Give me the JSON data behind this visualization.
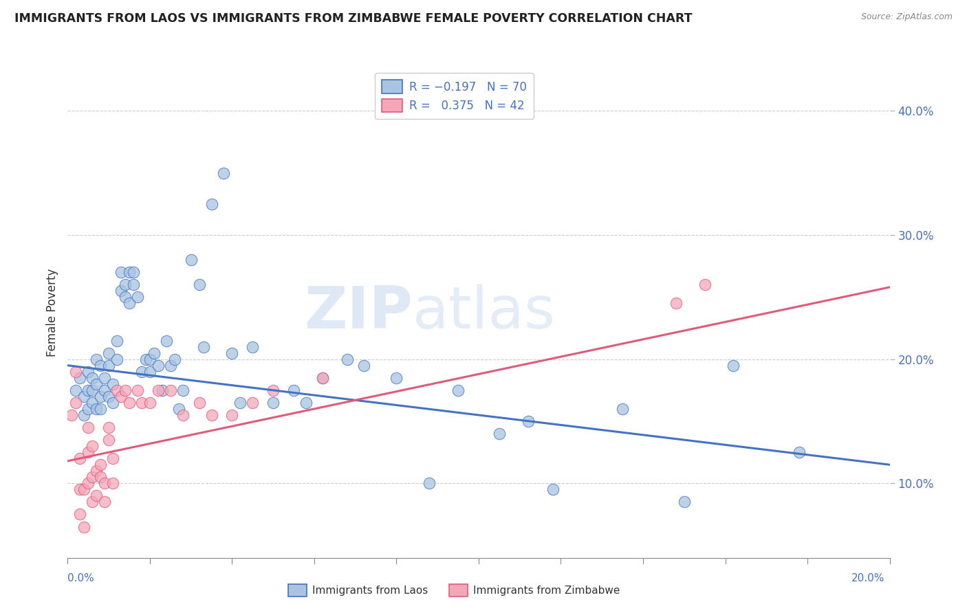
{
  "title": "IMMIGRANTS FROM LAOS VS IMMIGRANTS FROM ZIMBABWE FEMALE POVERTY CORRELATION CHART",
  "source": "Source: ZipAtlas.com",
  "ylabel": "Female Poverty",
  "yaxis_ticks": [
    0.1,
    0.2,
    0.3,
    0.4
  ],
  "yaxis_labels": [
    "10.0%",
    "20.0%",
    "30.0%",
    "40.0%"
  ],
  "xlim": [
    0.0,
    0.2
  ],
  "ylim": [
    0.04,
    0.435
  ],
  "color_laos": "#a8c4e0",
  "color_zimbabwe": "#f4a7b9",
  "color_line_laos": "#4472c4",
  "color_line_zimbabwe": "#e05a7a",
  "background_color": "#ffffff",
  "watermark_zip": "ZIP",
  "watermark_atlas": "atlas",
  "laos_x": [
    0.002,
    0.003,
    0.004,
    0.004,
    0.005,
    0.005,
    0.005,
    0.006,
    0.006,
    0.006,
    0.007,
    0.007,
    0.007,
    0.008,
    0.008,
    0.008,
    0.009,
    0.009,
    0.01,
    0.01,
    0.01,
    0.011,
    0.011,
    0.012,
    0.012,
    0.013,
    0.013,
    0.014,
    0.014,
    0.015,
    0.015,
    0.016,
    0.016,
    0.017,
    0.018,
    0.019,
    0.02,
    0.02,
    0.021,
    0.022,
    0.023,
    0.024,
    0.025,
    0.026,
    0.027,
    0.028,
    0.03,
    0.032,
    0.033,
    0.035,
    0.038,
    0.04,
    0.042,
    0.045,
    0.05,
    0.055,
    0.058,
    0.062,
    0.068,
    0.072,
    0.08,
    0.088,
    0.095,
    0.105,
    0.112,
    0.118,
    0.135,
    0.15,
    0.162,
    0.178
  ],
  "laos_y": [
    0.175,
    0.185,
    0.155,
    0.17,
    0.19,
    0.175,
    0.16,
    0.185,
    0.165,
    0.175,
    0.18,
    0.2,
    0.16,
    0.195,
    0.17,
    0.16,
    0.185,
    0.175,
    0.195,
    0.205,
    0.17,
    0.18,
    0.165,
    0.2,
    0.215,
    0.255,
    0.27,
    0.26,
    0.25,
    0.27,
    0.245,
    0.27,
    0.26,
    0.25,
    0.19,
    0.2,
    0.2,
    0.19,
    0.205,
    0.195,
    0.175,
    0.215,
    0.195,
    0.2,
    0.16,
    0.175,
    0.28,
    0.26,
    0.21,
    0.325,
    0.35,
    0.205,
    0.165,
    0.21,
    0.165,
    0.175,
    0.165,
    0.185,
    0.2,
    0.195,
    0.185,
    0.1,
    0.175,
    0.14,
    0.15,
    0.095,
    0.16,
    0.085,
    0.195,
    0.125
  ],
  "zimbabwe_x": [
    0.001,
    0.002,
    0.002,
    0.003,
    0.003,
    0.003,
    0.004,
    0.004,
    0.005,
    0.005,
    0.005,
    0.006,
    0.006,
    0.006,
    0.007,
    0.007,
    0.008,
    0.008,
    0.009,
    0.009,
    0.01,
    0.01,
    0.011,
    0.011,
    0.012,
    0.013,
    0.014,
    0.015,
    0.017,
    0.018,
    0.02,
    0.022,
    0.025,
    0.028,
    0.032,
    0.035,
    0.04,
    0.045,
    0.05,
    0.062,
    0.148,
    0.155
  ],
  "zimbabwe_y": [
    0.155,
    0.19,
    0.165,
    0.12,
    0.095,
    0.075,
    0.095,
    0.065,
    0.145,
    0.125,
    0.1,
    0.13,
    0.105,
    0.085,
    0.11,
    0.09,
    0.115,
    0.105,
    0.1,
    0.085,
    0.135,
    0.145,
    0.12,
    0.1,
    0.175,
    0.17,
    0.175,
    0.165,
    0.175,
    0.165,
    0.165,
    0.175,
    0.175,
    0.155,
    0.165,
    0.155,
    0.155,
    0.165,
    0.175,
    0.185,
    0.245,
    0.26
  ]
}
